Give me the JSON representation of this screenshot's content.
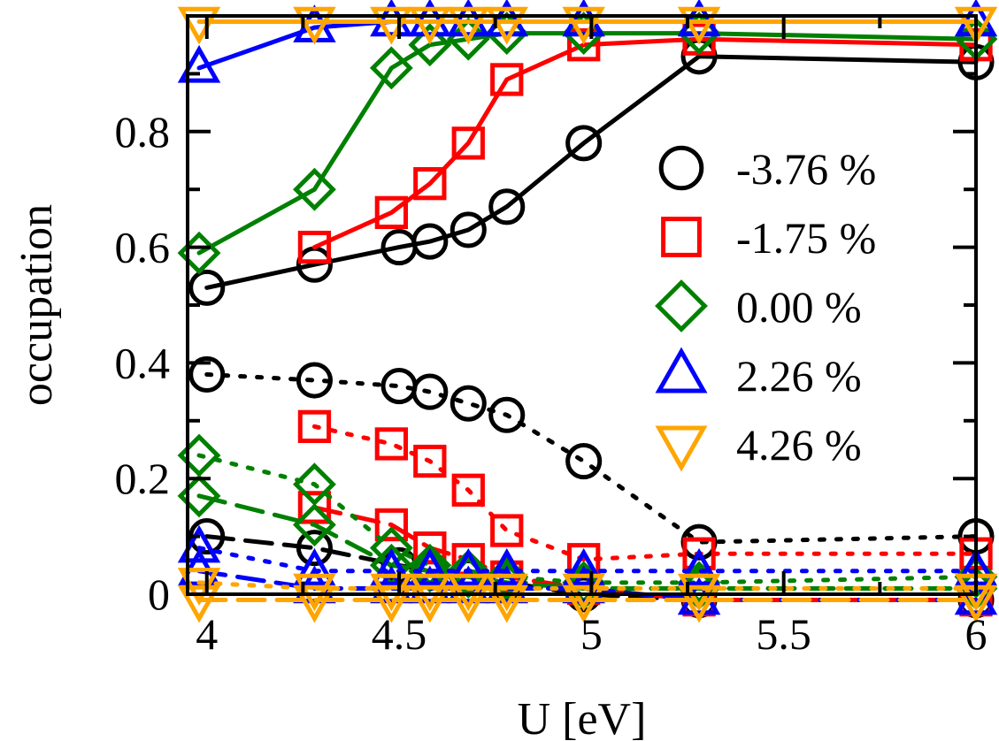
{
  "chart_data": {
    "type": "line",
    "xlabel": "U [eV]",
    "ylabel": "occupation",
    "xlim": [
      3.95,
      6.0
    ],
    "ylim": [
      0.0,
      1.0
    ],
    "x_ticks": [
      4,
      4.5,
      5,
      5.5,
      6
    ],
    "x_tick_labels": [
      "4",
      "4.5",
      "5",
      "5.5",
      "6"
    ],
    "y_ticks": [
      0,
      0.2,
      0.4,
      0.6,
      0.8
    ],
    "y_tick_labels": [
      "0",
      "0.2",
      "0.4",
      "0.6",
      "0.8"
    ],
    "y_minor_ticks": [
      0.1,
      0.3,
      0.5,
      0.7,
      0.9
    ],
    "legend_position": "right",
    "series": [
      {
        "name": "-3.76 %",
        "color": "#000000",
        "marker": "circle",
        "x": [
          4.0,
          4.28,
          4.5,
          4.58,
          4.68,
          4.78,
          4.98,
          5.28,
          6.0
        ],
        "solid": [
          0.53,
          0.57,
          0.6,
          0.61,
          0.63,
          0.67,
          0.78,
          0.93,
          0.92
        ],
        "dotted": [
          0.38,
          0.37,
          0.36,
          0.35,
          0.33,
          0.31,
          0.23,
          0.09,
          0.1
        ],
        "dashed": [
          0.1,
          0.08,
          0.05,
          0.04,
          0.03,
          0.02,
          0.0,
          -0.01,
          -0.01
        ]
      },
      {
        "name": "-1.75 %",
        "color": "#ff0000",
        "marker": "square",
        "x": [
          4.28,
          4.48,
          4.58,
          4.68,
          4.78,
          4.98,
          5.28,
          6.0
        ],
        "solid": [
          0.6,
          0.66,
          0.71,
          0.78,
          0.89,
          0.95,
          0.96,
          0.95
        ],
        "dotted": [
          0.29,
          0.26,
          0.23,
          0.18,
          0.11,
          0.06,
          0.07,
          0.07
        ],
        "dashed": [
          0.15,
          0.12,
          0.08,
          0.06,
          0.03,
          0.01,
          -0.01,
          -0.01
        ]
      },
      {
        "name": "0.00 %",
        "color": "#008000",
        "marker": "diamond",
        "x": [
          3.98,
          4.28,
          4.48,
          4.58,
          4.68,
          4.78,
          4.98,
          5.28,
          6.0
        ],
        "solid": [
          0.59,
          0.7,
          0.91,
          0.95,
          0.96,
          0.97,
          0.97,
          0.97,
          0.96
        ],
        "dotted": [
          0.24,
          0.19,
          0.08,
          0.05,
          0.04,
          0.03,
          0.02,
          0.02,
          0.03
        ],
        "dashed": [
          0.17,
          0.12,
          0.05,
          0.04,
          0.03,
          0.02,
          0.01,
          0.01,
          0.01
        ]
      },
      {
        "name": "2.26 %",
        "color": "#0000ff",
        "marker": "triangle-up",
        "x": [
          3.98,
          4.28,
          4.48,
          4.58,
          4.68,
          4.78,
          4.98,
          5.28,
          6.0
        ],
        "solid": [
          0.91,
          0.98,
          0.99,
          0.99,
          0.99,
          0.99,
          0.99,
          0.99,
          0.99
        ],
        "dotted": [
          0.08,
          0.04,
          0.04,
          0.04,
          0.04,
          0.04,
          0.04,
          0.04,
          0.04
        ],
        "dashed": [
          0.04,
          0.01,
          0.01,
          0.01,
          0.01,
          0.01,
          0.01,
          -0.01,
          -0.01
        ]
      },
      {
        "name": "4.26 %",
        "color": "#ffa500",
        "marker": "triangle-down",
        "x": [
          3.98,
          4.28,
          4.48,
          4.58,
          4.68,
          4.78,
          4.98,
          5.28,
          6.0
        ],
        "solid": [
          0.99,
          0.99,
          0.99,
          0.99,
          0.99,
          0.99,
          0.99,
          0.99,
          0.99
        ],
        "dotted": [
          0.02,
          0.01,
          0.01,
          0.01,
          0.01,
          0.01,
          0.01,
          0.01,
          0.01
        ],
        "dashed": [
          -0.01,
          -0.01,
          -0.01,
          -0.01,
          -0.01,
          -0.01,
          -0.01,
          -0.01,
          -0.01
        ]
      }
    ]
  }
}
